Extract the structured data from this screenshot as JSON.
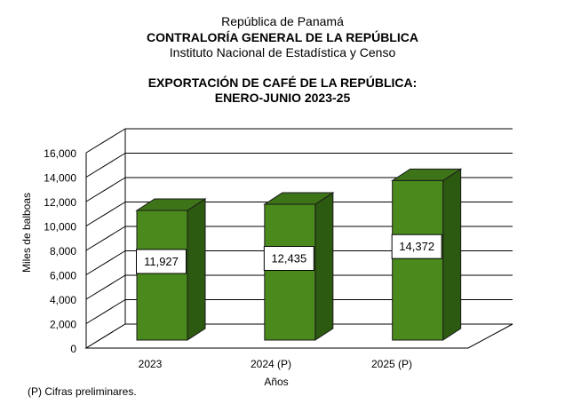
{
  "header": {
    "line1": "República de Panamá",
    "line2": "CONTRALORÍA GENERAL DE LA REPÚBLICA",
    "line3": "Instituto Nacional de Estadística y Censo"
  },
  "footnote": "(P) Cifras  preliminares.",
  "chart_data": {
    "type": "bar",
    "title": "EXPORTACIÓN DE CAFÉ DE LA REPÚBLICA:",
    "subtitle": "ENERO-JUNIO 2023-25",
    "xlabel": "Años",
    "ylabel": "Miles de balboas",
    "categories": [
      "2023",
      "2024 (P)",
      "2025 (P)"
    ],
    "values": [
      11927,
      12435,
      14372
    ],
    "value_labels": [
      "11,927",
      "12,435",
      "14,372"
    ],
    "ylim": [
      0,
      16000
    ],
    "yticks": [
      0,
      2000,
      4000,
      6000,
      8000,
      10000,
      12000,
      14000,
      16000
    ],
    "ytick_labels": [
      "0",
      "2,000",
      "4,000",
      "6,000",
      "8,000",
      "10,000",
      "12,000",
      "14,000",
      "16,000"
    ],
    "grid": true,
    "style": "3d",
    "colors": {
      "bar_front": "#4a8a1c",
      "bar_side": "#2c5a10",
      "bar_top": "#3e7418"
    }
  }
}
